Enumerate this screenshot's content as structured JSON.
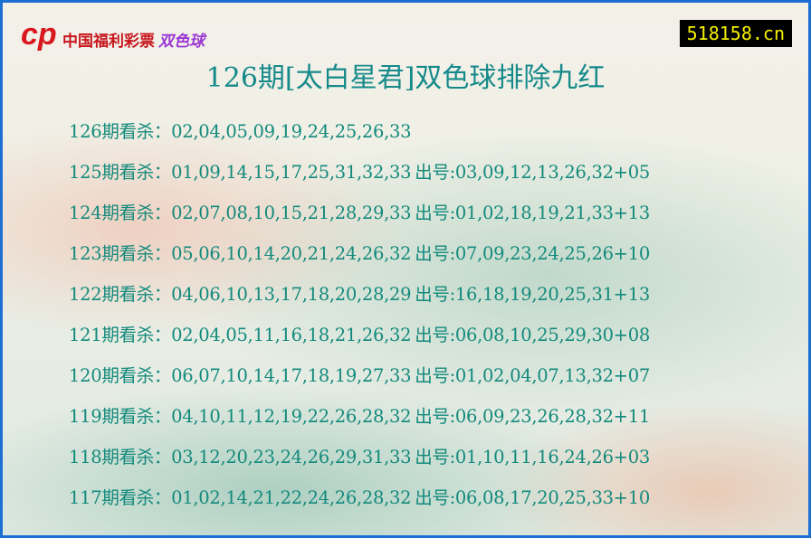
{
  "logo": {
    "text": "中国福利彩票",
    "brand": "双色球"
  },
  "site": "518158.cn",
  "title": "126期[太白星君]双色球排除九红",
  "rows": [
    {
      "period": "126期看杀：",
      "kill": "02,04,05,09,19,24,25,26,33",
      "result": ""
    },
    {
      "period": "125期看杀：",
      "kill": "01,09,14,15,17,25,31,32,33",
      "result": "出号:03,09,12,13,26,32+05"
    },
    {
      "period": "124期看杀：",
      "kill": "02,07,08,10,15,21,28,29,33",
      "result": "出号:01,02,18,19,21,33+13"
    },
    {
      "period": "123期看杀：",
      "kill": "05,06,10,14,20,21,24,26,32",
      "result": "出号:07,09,23,24,25,26+10"
    },
    {
      "period": "122期看杀：",
      "kill": "04,06,10,13,17,18,20,28,29",
      "result": "出号:16,18,19,20,25,31+13"
    },
    {
      "period": "121期看杀：",
      "kill": "02,04,05,11,16,18,21,26,32",
      "result": "出号:06,08,10,25,29,30+08"
    },
    {
      "period": "120期看杀：",
      "kill": "06,07,10,14,17,18,19,27,33",
      "result": "出号:01,02,04,07,13,32+07"
    },
    {
      "period": "119期看杀：",
      "kill": "04,10,11,12,19,22,26,28,32",
      "result": "出号:06,09,23,26,28,32+11"
    },
    {
      "period": "118期看杀：",
      "kill": "03,12,20,23,24,26,29,31,33",
      "result": "出号:01,10,11,16,24,26+03"
    },
    {
      "period": "117期看杀：",
      "kill": "01,02,14,21,22,24,26,28,32",
      "result": "出号:06,08,17,20,25,33+10"
    }
  ]
}
